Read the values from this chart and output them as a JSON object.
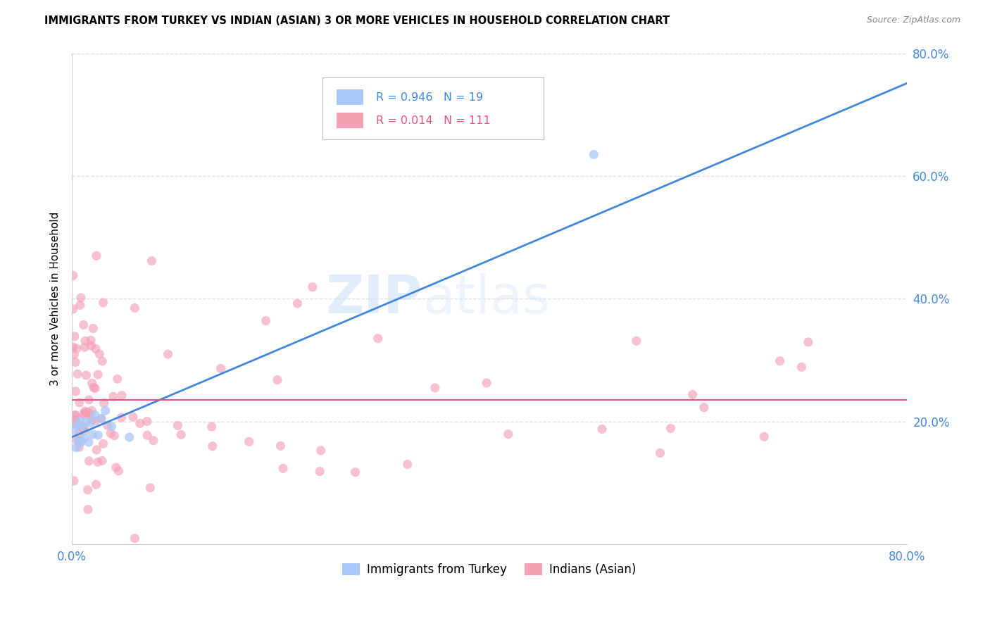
{
  "title": "IMMIGRANTS FROM TURKEY VS INDIAN (ASIAN) 3 OR MORE VEHICLES IN HOUSEHOLD CORRELATION CHART",
  "source": "Source: ZipAtlas.com",
  "ylabel": "3 or more Vehicles in Household",
  "xlim": [
    0.0,
    0.8
  ],
  "ylim": [
    0.0,
    0.8
  ],
  "legend_blue_r": "R = 0.946",
  "legend_blue_n": "N = 19",
  "legend_pink_r": "R = 0.014",
  "legend_pink_n": "N = 111",
  "blue_color": "#a8c8f8",
  "pink_color": "#f4a0b5",
  "blue_line_color": "#4488dd",
  "pink_line_color": "#e85580",
  "blue_line_slope": 0.72,
  "blue_line_intercept": 0.175,
  "pink_line_y": 0.235,
  "watermark_zip": "ZIP",
  "watermark_atlas": "atlas",
  "grid_color": "#dddddd",
  "spine_color": "#cccccc",
  "tick_color": "#4488dd",
  "bottom_legend_label_blue": "Immigrants from Turkey",
  "bottom_legend_label_pink": "Indians (Asian)"
}
